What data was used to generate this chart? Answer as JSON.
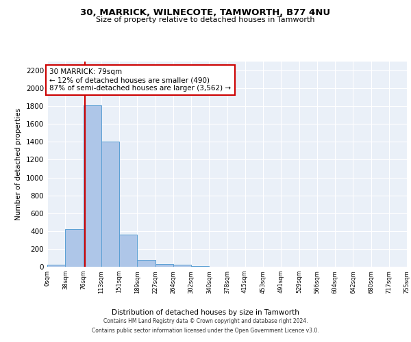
{
  "title": "30, MARRICK, WILNECOTE, TAMWORTH, B77 4NU",
  "subtitle": "Size of property relative to detached houses in Tamworth",
  "xlabel": "Distribution of detached houses by size in Tamworth",
  "ylabel": "Number of detached properties",
  "bar_color": "#aec6e8",
  "bar_edge_color": "#5a9fd4",
  "background_color": "#eaf0f8",
  "grid_color": "#ffffff",
  "annotation_box_color": "#cc0000",
  "property_line_color": "#cc0000",
  "property_value": 79,
  "annotation_text": "30 MARRICK: 79sqm\n← 12% of detached houses are smaller (490)\n87% of semi-detached houses are larger (3,562) →",
  "categories": [
    "0sqm",
    "38sqm",
    "76sqm",
    "113sqm",
    "151sqm",
    "189sqm",
    "227sqm",
    "264sqm",
    "302sqm",
    "340sqm",
    "378sqm",
    "415sqm",
    "453sqm",
    "491sqm",
    "529sqm",
    "566sqm",
    "604sqm",
    "642sqm",
    "680sqm",
    "717sqm",
    "755sqm"
  ],
  "bin_edges": [
    0,
    38,
    76,
    113,
    151,
    189,
    227,
    264,
    302,
    340,
    378,
    415,
    453,
    491,
    529,
    566,
    604,
    642,
    680,
    717,
    755
  ],
  "bar_heights": [
    20,
    420,
    1810,
    1400,
    360,
    80,
    30,
    25,
    5,
    0,
    0,
    0,
    0,
    0,
    0,
    0,
    0,
    0,
    0,
    0
  ],
  "ylim": [
    0,
    2300
  ],
  "yticks": [
    0,
    200,
    400,
    600,
    800,
    1000,
    1200,
    1400,
    1600,
    1800,
    2000,
    2200
  ],
  "footer_line1": "Contains HM Land Registry data © Crown copyright and database right 2024.",
  "footer_line2": "Contains public sector information licensed under the Open Government Licence v3.0."
}
